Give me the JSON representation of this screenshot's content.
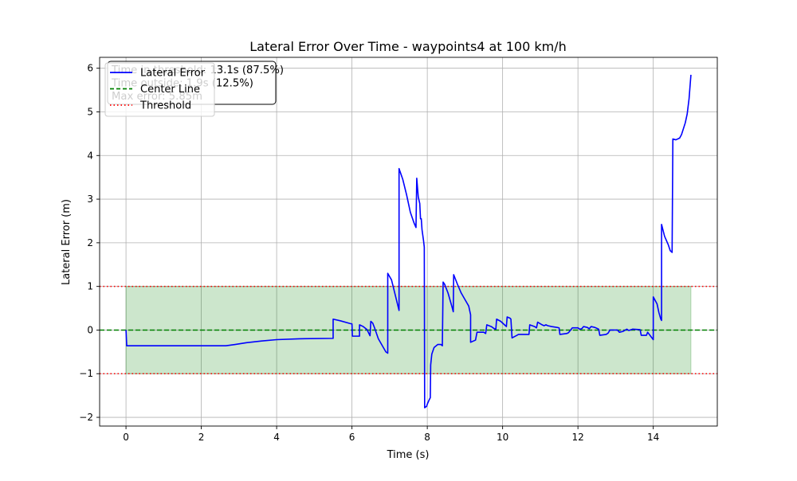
{
  "chart_data": {
    "type": "line",
    "title": "Lateral Error Over Time - waypoints4 at 100 km/h",
    "xlabel": "Time (s)",
    "ylabel": "Lateral Error (m)",
    "xlim": [
      -0.7,
      15.7
    ],
    "ylim": [
      -2.2,
      6.25
    ],
    "xticks": [
      0,
      2,
      4,
      6,
      8,
      10,
      12,
      14
    ],
    "yticks": [
      -2,
      -1,
      0,
      1,
      2,
      3,
      4,
      5,
      6
    ],
    "grid": true,
    "legend_position": "top-left",
    "threshold": 1.0,
    "fill_band": {
      "y0": -1.0,
      "y1": 1.0,
      "x0": 0,
      "x1": 15
    },
    "stats_box": {
      "lines": [
        "Time in threshold: 13.1s (87.5%)",
        "Time outside: 1.9s (12.5%)",
        "Max error: 5.85m"
      ]
    },
    "legend": [
      {
        "label": "Lateral Error",
        "color": "#0000ff",
        "style": "solid"
      },
      {
        "label": "Center Line",
        "color": "#008000",
        "style": "dashed"
      },
      {
        "label": "Threshold",
        "color": "#ff0000",
        "style": "dotted"
      }
    ],
    "series": [
      {
        "name": "Lateral Error",
        "color": "#0000ff",
        "points": [
          [
            0,
            0
          ],
          [
            0.02,
            -0.36
          ],
          [
            1.0,
            -0.36
          ],
          [
            2.0,
            -0.36
          ],
          [
            2.65,
            -0.36
          ],
          [
            2.9,
            -0.33
          ],
          [
            3.2,
            -0.29
          ],
          [
            3.6,
            -0.25
          ],
          [
            4.0,
            -0.22
          ],
          [
            4.6,
            -0.2
          ],
          [
            5.5,
            -0.19
          ],
          [
            5.5,
            0.25
          ],
          [
            5.7,
            0.21
          ],
          [
            5.95,
            0.15
          ],
          [
            6.0,
            0.14
          ],
          [
            6.01,
            -0.14
          ],
          [
            6.2,
            -0.14
          ],
          [
            6.2,
            0.12
          ],
          [
            6.3,
            0.08
          ],
          [
            6.4,
            0.01
          ],
          [
            6.45,
            -0.08
          ],
          [
            6.48,
            -0.13
          ],
          [
            6.5,
            0.2
          ],
          [
            6.55,
            0.16
          ],
          [
            6.6,
            0.05
          ],
          [
            6.7,
            -0.2
          ],
          [
            6.8,
            -0.35
          ],
          [
            6.9,
            -0.5
          ],
          [
            6.95,
            -0.53
          ],
          [
            6.95,
            1.3
          ],
          [
            7.05,
            1.15
          ],
          [
            7.15,
            0.8
          ],
          [
            7.25,
            0.45
          ],
          [
            7.25,
            3.7
          ],
          [
            7.35,
            3.45
          ],
          [
            7.45,
            3.1
          ],
          [
            7.55,
            2.7
          ],
          [
            7.65,
            2.45
          ],
          [
            7.7,
            2.35
          ],
          [
            7.72,
            3.48
          ],
          [
            7.76,
            3.05
          ],
          [
            7.8,
            2.9
          ],
          [
            7.82,
            2.55
          ],
          [
            7.84,
            2.55
          ],
          [
            7.86,
            2.3
          ],
          [
            7.9,
            2.05
          ],
          [
            7.92,
            1.9
          ],
          [
            7.93,
            -1.78
          ],
          [
            7.98,
            -1.75
          ],
          [
            8.0,
            -1.7
          ],
          [
            8.05,
            -1.6
          ],
          [
            8.08,
            -1.55
          ],
          [
            8.09,
            -0.8
          ],
          [
            8.12,
            -0.55
          ],
          [
            8.18,
            -0.4
          ],
          [
            8.28,
            -0.33
          ],
          [
            8.36,
            -0.33
          ],
          [
            8.4,
            -0.36
          ],
          [
            8.42,
            1.1
          ],
          [
            8.46,
            1.05
          ],
          [
            8.55,
            0.85
          ],
          [
            8.65,
            0.55
          ],
          [
            8.69,
            0.42
          ],
          [
            8.7,
            1.27
          ],
          [
            8.8,
            1.05
          ],
          [
            8.9,
            0.85
          ],
          [
            9.0,
            0.7
          ],
          [
            9.1,
            0.55
          ],
          [
            9.15,
            0.35
          ],
          [
            9.15,
            -0.28
          ],
          [
            9.28,
            -0.23
          ],
          [
            9.32,
            -0.05
          ],
          [
            9.5,
            -0.05
          ],
          [
            9.55,
            -0.08
          ],
          [
            9.58,
            0.12
          ],
          [
            9.7,
            0.08
          ],
          [
            9.78,
            0.03
          ],
          [
            9.82,
            0.02
          ],
          [
            9.84,
            0.25
          ],
          [
            9.95,
            0.2
          ],
          [
            10.05,
            0.12
          ],
          [
            10.1,
            0.08
          ],
          [
            10.12,
            0.3
          ],
          [
            10.2,
            0.27
          ],
          [
            10.22,
            0.25
          ],
          [
            10.25,
            -0.18
          ],
          [
            10.38,
            -0.12
          ],
          [
            10.42,
            -0.1
          ],
          [
            10.7,
            -0.1
          ],
          [
            10.72,
            0.12
          ],
          [
            10.85,
            0.08
          ],
          [
            10.9,
            0.05
          ],
          [
            10.93,
            0.18
          ],
          [
            11.05,
            0.12
          ],
          [
            11.1,
            0.1
          ],
          [
            11.15,
            0.12
          ],
          [
            11.2,
            0.1
          ],
          [
            11.3,
            0.08
          ],
          [
            11.45,
            0.06
          ],
          [
            11.5,
            0.05
          ],
          [
            11.52,
            -0.1
          ],
          [
            11.7,
            -0.08
          ],
          [
            11.75,
            -0.06
          ],
          [
            11.85,
            0.05
          ],
          [
            12.0,
            0.05
          ],
          [
            12.05,
            0.02
          ],
          [
            12.1,
            0.03
          ],
          [
            12.15,
            0.08
          ],
          [
            12.25,
            0.06
          ],
          [
            12.3,
            0.03
          ],
          [
            12.35,
            0.08
          ],
          [
            12.45,
            0.06
          ],
          [
            12.5,
            0.04
          ],
          [
            12.55,
            0.02
          ],
          [
            12.58,
            -0.12
          ],
          [
            12.75,
            -0.1
          ],
          [
            12.8,
            -0.07
          ],
          [
            12.85,
            0.0
          ],
          [
            13.05,
            0.0
          ],
          [
            13.1,
            -0.05
          ],
          [
            13.2,
            -0.03
          ],
          [
            13.3,
            0.02
          ],
          [
            13.35,
            -0.01
          ],
          [
            13.45,
            0.02
          ],
          [
            13.65,
            0.01
          ],
          [
            13.68,
            -0.12
          ],
          [
            13.82,
            -0.12
          ],
          [
            13.85,
            -0.05
          ],
          [
            14.0,
            -0.22
          ],
          [
            14.0,
            0.76
          ],
          [
            14.1,
            0.6
          ],
          [
            14.15,
            0.4
          ],
          [
            14.2,
            0.25
          ],
          [
            14.22,
            0.22
          ],
          [
            14.22,
            2.42
          ],
          [
            14.3,
            2.15
          ],
          [
            14.4,
            1.95
          ],
          [
            14.45,
            1.82
          ],
          [
            14.5,
            1.78
          ],
          [
            14.52,
            4.38
          ],
          [
            14.6,
            4.36
          ],
          [
            14.7,
            4.4
          ],
          [
            14.75,
            4.48
          ],
          [
            14.85,
            4.75
          ],
          [
            14.9,
            4.95
          ],
          [
            14.95,
            5.3
          ],
          [
            15.0,
            5.85
          ]
        ]
      }
    ],
    "reference_lines": [
      {
        "name": "Center Line",
        "y": 0,
        "color": "#008000",
        "style": "dashed"
      },
      {
        "name": "Threshold",
        "y": 1,
        "color": "#ff0000",
        "style": "dotted"
      },
      {
        "name": "Threshold",
        "y": -1,
        "color": "#ff0000",
        "style": "dotted"
      }
    ]
  }
}
